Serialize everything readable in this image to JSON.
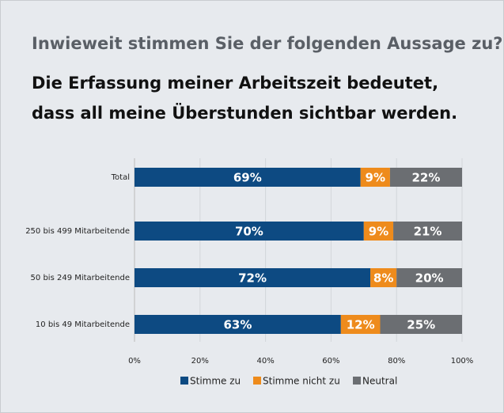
{
  "chart_data": {
    "type": "stacked-bar-horizontal",
    "title": "Inwieweit stimmen Sie der folgenden Aussage zu?",
    "subtitle": [
      "Die Erfassung meiner Arbeitszeit bedeutet,",
      "dass all meine Überstunden sichtbar werden."
    ],
    "categories": [
      "Total",
      "250 bis 499 Mitarbeitende",
      "50 bis 249 Mitarbeitende",
      "10 bis 49 Mitarbeitende"
    ],
    "series": [
      {
        "name": "Stimme zu",
        "color": "#0d4a82",
        "values": [
          69,
          70,
          72,
          63
        ],
        "value_labels": [
          "69%",
          "70%",
          "72%",
          "63%"
        ]
      },
      {
        "name": "Stimme nicht zu",
        "color": "#ee8b1c",
        "values": [
          9,
          9,
          8,
          12
        ],
        "value_labels": [
          "9%",
          "9%",
          "8%",
          "12%"
        ]
      },
      {
        "name": "Neutral",
        "color": "#6b6e72",
        "values": [
          22,
          21,
          20,
          25
        ],
        "value_labels": [
          "22%",
          "21%",
          "20%",
          "25%"
        ]
      }
    ],
    "xlim": [
      0,
      100
    ],
    "xticks": [
      {
        "value": 0,
        "label": "0%"
      },
      {
        "value": 20,
        "label": "20%"
      },
      {
        "value": 40,
        "label": "40%"
      },
      {
        "value": 60,
        "label": "60%"
      },
      {
        "value": 80,
        "label": "80%"
      },
      {
        "value": 100,
        "label": "100%"
      }
    ],
    "grid": true
  }
}
